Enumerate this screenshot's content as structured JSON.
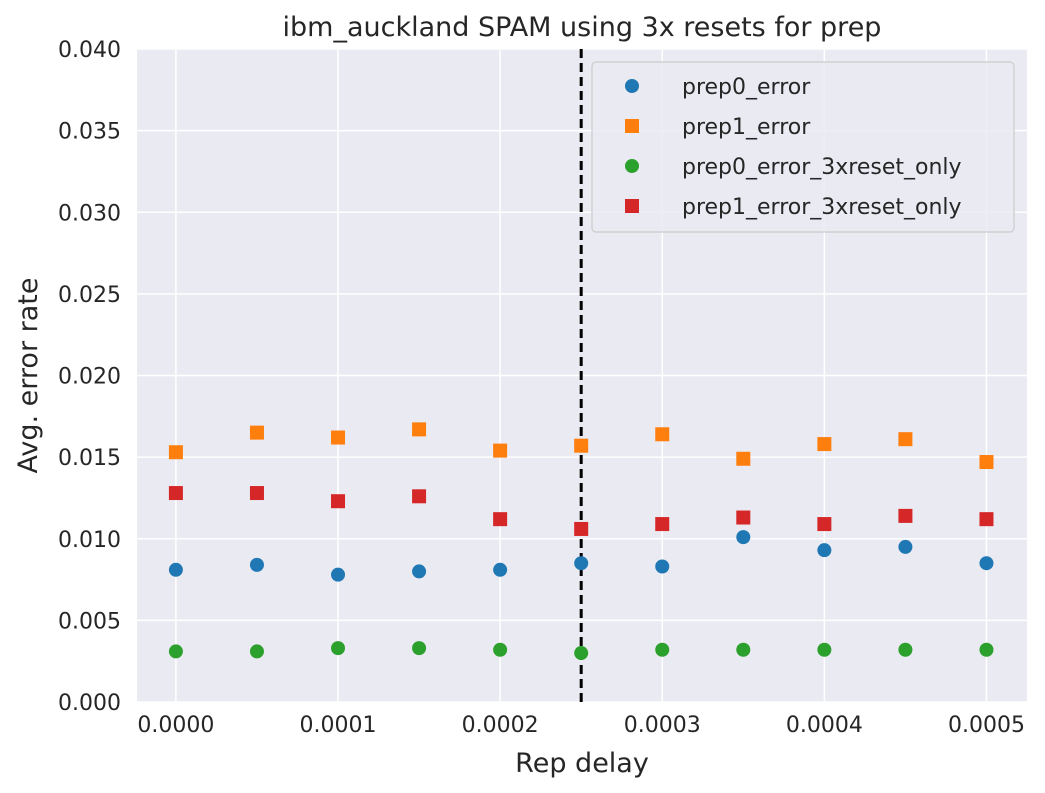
{
  "chart_data": {
    "type": "scatter",
    "title": "ibm_auckland SPAM using 3x resets for prep",
    "xlabel": "Rep delay",
    "ylabel": "Avg. error rate",
    "xlim": [
      -2.4e-05,
      0.000525
    ],
    "ylim": [
      0.0,
      0.04
    ],
    "x_ticks": [
      0.0,
      0.0001,
      0.0002,
      0.0003,
      0.0004,
      0.0005
    ],
    "x_tick_labels": [
      "0.0000",
      "0.0001",
      "0.0002",
      "0.0003",
      "0.0004",
      "0.0005"
    ],
    "y_ticks": [
      0.0,
      0.005,
      0.01,
      0.015,
      0.02,
      0.025,
      0.03,
      0.035,
      0.04
    ],
    "y_tick_labels": [
      "0.000",
      "0.005",
      "0.010",
      "0.015",
      "0.020",
      "0.025",
      "0.030",
      "0.035",
      "0.040"
    ],
    "grid": true,
    "legend_position": "top-right",
    "vline": {
      "x": 0.00025,
      "style": "dashed",
      "color": "#000000"
    },
    "x": [
      0.0,
      5e-05,
      0.0001,
      0.00015,
      0.0002,
      0.00025,
      0.0003,
      0.00035,
      0.0004,
      0.00045,
      0.0005
    ],
    "series": [
      {
        "name": "prep0_error",
        "marker": "circle",
        "color": "#1f77b4",
        "values": [
          0.0081,
          0.0084,
          0.0078,
          0.008,
          0.0081,
          0.0085,
          0.0083,
          0.0101,
          0.0093,
          0.0095,
          0.0085
        ]
      },
      {
        "name": "prep1_error",
        "marker": "square",
        "color": "#ff7f0e",
        "values": [
          0.0153,
          0.0165,
          0.0162,
          0.0167,
          0.0154,
          0.0157,
          0.0164,
          0.0149,
          0.0158,
          0.0161,
          0.0147
        ]
      },
      {
        "name": "prep0_error_3xreset_only",
        "marker": "circle",
        "color": "#2ca02c",
        "values": [
          0.0031,
          0.0031,
          0.0033,
          0.0033,
          0.0032,
          0.003,
          0.0032,
          0.0032,
          0.0032,
          0.0032,
          0.0032
        ]
      },
      {
        "name": "prep1_error_3xreset_only",
        "marker": "square",
        "color": "#d62728",
        "values": [
          0.0128,
          0.0128,
          0.0123,
          0.0126,
          0.0112,
          0.0106,
          0.0109,
          0.0113,
          0.0109,
          0.0114,
          0.0112
        ]
      }
    ],
    "colors": {
      "plot_background": "#eaeaf2",
      "grid": "#ffffff"
    }
  }
}
